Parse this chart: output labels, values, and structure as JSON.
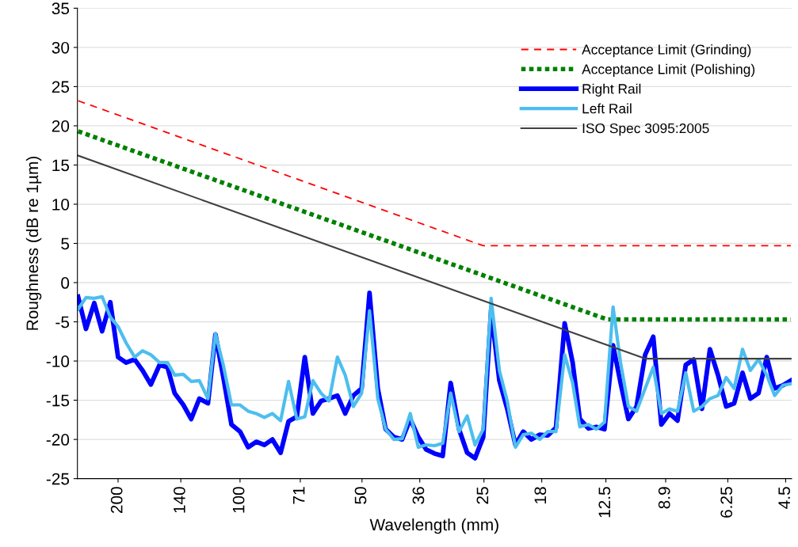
{
  "chart_data": {
    "type": "line",
    "xlabel": "Wavelength (mm)",
    "ylabel": "Roughness (dB re 1µm)",
    "log": "x",
    "xlim": [
      252,
      4.35
    ],
    "ylim": [
      -25,
      35
    ],
    "xticks": [
      200,
      140,
      100,
      71,
      50,
      36,
      25,
      18,
      12.5,
      8.9,
      6.25,
      4.5
    ],
    "yticks": [
      -25,
      -20,
      -15,
      -10,
      -5,
      0,
      5,
      10,
      15,
      20,
      25,
      30,
      35
    ],
    "grid": "y",
    "legend": "top right",
    "series": [
      {
        "name": "Acceptance Limit (Grinding)",
        "color": "#ff0000",
        "line_style": "dashed",
        "x": [
          251,
          25.1,
          4.37
        ],
        "values": [
          23.2,
          4.7,
          4.7
        ]
      },
      {
        "name": "Acceptance Limit (Polishing)",
        "color": "#008000",
        "line_style": "dotted",
        "x": [
          251,
          12.4,
          4.37
        ],
        "values": [
          19.3,
          -4.7,
          -4.7
        ]
      },
      {
        "name": "Right Rail",
        "color": "#0000ff",
        "line_style": "solid",
        "x": [
          251,
          240,
          229,
          219,
          209,
          200,
          191,
          182,
          174,
          166,
          158,
          151,
          145,
          138,
          132,
          126,
          120,
          115,
          110,
          105,
          100,
          95.5,
          91.2,
          87.1,
          83.2,
          79.4,
          75.9,
          72.4,
          69.2,
          66.1,
          63.1,
          60.3,
          57.5,
          55.0,
          52.5,
          50.1,
          47.9,
          45.7,
          43.7,
          41.7,
          39.8,
          38.0,
          36.3,
          34.7,
          33.1,
          31.6,
          30.2,
          28.8,
          27.5,
          26.3,
          25.1,
          24.0,
          22.9,
          21.9,
          20.9,
          20.0,
          19.1,
          18.2,
          17.4,
          16.6,
          15.8,
          15.1,
          14.5,
          13.8,
          13.2,
          12.6,
          12.0,
          11.5,
          11.0,
          10.5,
          10.0,
          9.55,
          9.12,
          8.71,
          8.32,
          7.94,
          7.59,
          7.24,
          6.92,
          6.61,
          6.31,
          6.03,
          5.75,
          5.5,
          5.25,
          5.01,
          4.79,
          4.57,
          4.37
        ],
        "values": [
          -1.8,
          -5.9,
          -2.6,
          -6.2,
          -2.5,
          -9.5,
          -10.2,
          -9.8,
          -11.2,
          -13.0,
          -10.5,
          -10.8,
          -14.1,
          -15.6,
          -17.4,
          -14.8,
          -15.4,
          -6.6,
          -12.0,
          -18.1,
          -19.0,
          -21.0,
          -20.3,
          -20.7,
          -20.0,
          -21.7,
          -17.7,
          -17.1,
          -9.5,
          -16.7,
          -15.1,
          -14.8,
          -14.4,
          -16.7,
          -14.4,
          -13.5,
          -1.3,
          -13.5,
          -18.7,
          -19.7,
          -20.0,
          -17.4,
          -19.7,
          -21.3,
          -21.8,
          -22.1,
          -12.8,
          -18.7,
          -21.7,
          -22.4,
          -19.7,
          -3.5,
          -12.5,
          -16.1,
          -20.7,
          -19.0,
          -20.0,
          -19.4,
          -19.5,
          -18.5,
          -5.2,
          -10.2,
          -17.4,
          -18.6,
          -18.4,
          -18.7,
          -8.0,
          -12.8,
          -17.4,
          -15.8,
          -9.2,
          -6.9,
          -18.1,
          -16.7,
          -17.6,
          -10.5,
          -9.8,
          -16.1,
          -8.5,
          -11.8,
          -15.8,
          -15.4,
          -11.5,
          -14.8,
          -14.1,
          -9.5,
          -13.5,
          -13.1,
          -12.5
        ]
      },
      {
        "name": "Left Rail",
        "color": "#4dbeee",
        "line_style": "solid",
        "x": [
          251,
          240,
          229,
          219,
          209,
          200,
          191,
          182,
          174,
          166,
          158,
          151,
          145,
          138,
          132,
          126,
          120,
          115,
          110,
          105,
          100,
          95.5,
          91.2,
          87.1,
          83.2,
          79.4,
          75.9,
          72.4,
          69.2,
          66.1,
          63.1,
          60.3,
          57.5,
          55.0,
          52.5,
          50.1,
          47.9,
          45.7,
          43.7,
          41.7,
          39.8,
          38.0,
          36.3,
          34.7,
          33.1,
          31.6,
          30.2,
          28.8,
          27.5,
          26.3,
          25.1,
          24.0,
          22.9,
          21.9,
          20.9,
          20.0,
          19.1,
          18.2,
          17.4,
          16.6,
          15.8,
          15.1,
          14.5,
          13.8,
          13.2,
          12.6,
          12.0,
          11.5,
          11.0,
          10.5,
          10.0,
          9.55,
          9.12,
          8.71,
          8.32,
          7.94,
          7.59,
          7.24,
          6.92,
          6.61,
          6.31,
          6.03,
          5.75,
          5.5,
          5.25,
          5.01,
          4.79,
          4.57,
          4.37
        ],
        "values": [
          -3.4,
          -1.9,
          -2.0,
          -1.8,
          -4.4,
          -5.6,
          -7.7,
          -9.5,
          -8.7,
          -9.2,
          -10.2,
          -10.2,
          -11.8,
          -11.7,
          -12.6,
          -12.5,
          -14.8,
          -6.5,
          -10.5,
          -15.6,
          -15.6,
          -16.4,
          -16.7,
          -17.2,
          -16.7,
          -17.6,
          -12.6,
          -17.4,
          -17.1,
          -12.5,
          -14.1,
          -15.1,
          -9.5,
          -11.8,
          -15.8,
          -14.1,
          -3.6,
          -14.8,
          -18.7,
          -20.0,
          -19.9,
          -16.7,
          -21.0,
          -20.7,
          -20.8,
          -20.5,
          -14.1,
          -19.0,
          -17.0,
          -20.7,
          -18.7,
          -2.0,
          -11.2,
          -15.1,
          -21.0,
          -19.4,
          -19.2,
          -20.0,
          -19.0,
          -19.0,
          -9.2,
          -12.8,
          -18.4,
          -18.1,
          -18.7,
          -17.8,
          -3.1,
          -10.2,
          -15.8,
          -16.4,
          -13.5,
          -10.8,
          -16.7,
          -16.1,
          -16.4,
          -11.5,
          -16.4,
          -15.8,
          -14.8,
          -14.4,
          -12.1,
          -13.5,
          -8.5,
          -11.2,
          -9.8,
          -11.8,
          -14.4,
          -13.1,
          -12.9
        ]
      },
      {
        "name": "ISO Spec 3095:2005",
        "color": "#404040",
        "line_style": "solid",
        "x": [
          251,
          10.0,
          4.37
        ],
        "values": [
          16.2,
          -9.7,
          -9.7
        ]
      }
    ]
  }
}
